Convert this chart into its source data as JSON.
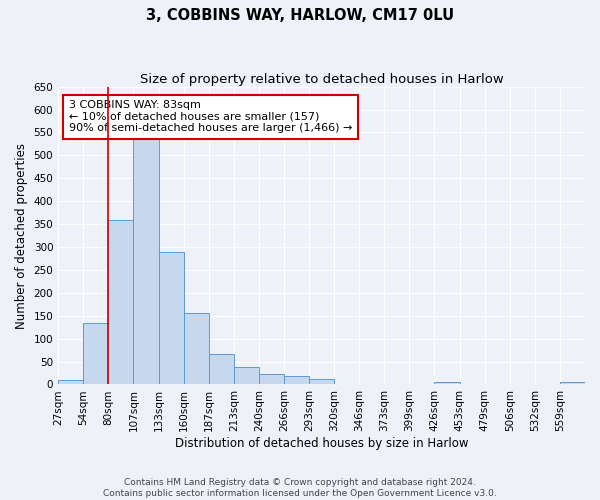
{
  "title": "3, COBBINS WAY, HARLOW, CM17 0LU",
  "subtitle": "Size of property relative to detached houses in Harlow",
  "xlabel": "Distribution of detached houses by size in Harlow",
  "ylabel": "Number of detached properties",
  "bin_labels": [
    "27sqm",
    "54sqm",
    "80sqm",
    "107sqm",
    "133sqm",
    "160sqm",
    "187sqm",
    "213sqm",
    "240sqm",
    "266sqm",
    "293sqm",
    "320sqm",
    "346sqm",
    "373sqm",
    "399sqm",
    "426sqm",
    "453sqm",
    "479sqm",
    "506sqm",
    "532sqm",
    "559sqm"
  ],
  "bar_heights": [
    10,
    135,
    358,
    535,
    290,
    157,
    67,
    39,
    23,
    18,
    12,
    0,
    0,
    0,
    0,
    5,
    0,
    0,
    0,
    0,
    5
  ],
  "bar_color": "#c5d8ed",
  "bar_edge_color": "#5b9bd5",
  "vline_color": "#cc0000",
  "annotation_text": "3 COBBINS WAY: 83sqm\n← 10% of detached houses are smaller (157)\n90% of semi-detached houses are larger (1,466) →",
  "annotation_box_color": "#ffffff",
  "annotation_box_edge_color": "#cc0000",
  "ylim": [
    0,
    650
  ],
  "yticks": [
    0,
    50,
    100,
    150,
    200,
    250,
    300,
    350,
    400,
    450,
    500,
    550,
    600,
    650
  ],
  "footer_text": "Contains HM Land Registry data © Crown copyright and database right 2024.\nContains public sector information licensed under the Open Government Licence v3.0.",
  "background_color": "#eef2f8",
  "grid_color": "#ffffff",
  "title_fontsize": 10.5,
  "subtitle_fontsize": 9.5,
  "axis_label_fontsize": 8.5,
  "tick_fontsize": 7.5,
  "annotation_fontsize": 8,
  "footer_fontsize": 6.5
}
